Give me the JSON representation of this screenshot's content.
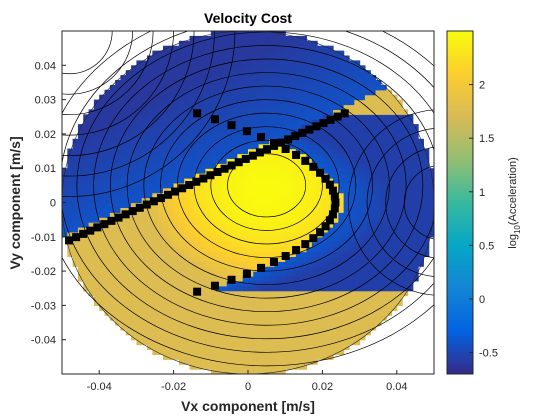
{
  "chart_data": {
    "type": "heatmap",
    "title": "Velocity Cost",
    "xlabel": "Vx component [m/s]",
    "ylabel": "Vy component [m/s]",
    "xlim": [
      -0.05,
      0.05
    ],
    "ylim": [
      -0.05,
      0.05
    ],
    "x_ticks": [
      -0.04,
      -0.02,
      0,
      0.02,
      0.04
    ],
    "x_tick_labels": [
      "-0.04",
      "-0.02",
      "0",
      "0.02",
      "0.04"
    ],
    "y_ticks": [
      0.04,
      0.03,
      0.02,
      0.01,
      0,
      -0.01,
      -0.02,
      -0.03,
      -0.04
    ],
    "y_tick_labels": [
      "0.04",
      "0.03",
      "0.02",
      "0.01",
      "0",
      "-0.01",
      "-0.02",
      "-0.03",
      "-0.04"
    ],
    "grid": false,
    "domain": "disk",
    "domain_radius": 0.05,
    "colorbar": {
      "label_main": "log",
      "label_sub": "10",
      "label_rest": "(Acceleration)",
      "colormap": "parula",
      "clim": [
        -0.7,
        2.5
      ],
      "ticks": [
        2,
        1.5,
        1,
        0.5,
        0,
        -0.5
      ],
      "tick_labels": [
        "2",
        "1.5",
        "1",
        "0.5",
        "0",
        "-0.5"
      ]
    },
    "features": {
      "minimum_near": [
        0.005,
        0.005
      ],
      "low_regions": [
        "upper-left",
        "right"
      ],
      "high_regions": [
        "center",
        "lower-left"
      ]
    }
  }
}
